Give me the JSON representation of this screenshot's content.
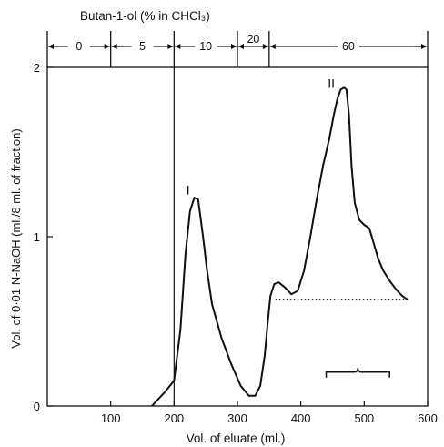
{
  "chart_data": {
    "type": "line",
    "title": "Butan-1-ol (% in CHCl₃)",
    "xlabel": "Vol. of eluate (ml.)",
    "ylabel": "Vol. of 0·01 N-NaOH (ml./8 ml. of fraction)",
    "xlim": [
      0,
      600
    ],
    "ylim": [
      0,
      2
    ],
    "x_ticks": [
      100,
      200,
      300,
      400,
      500,
      600
    ],
    "x_tick_labels": [
      "100",
      "200",
      "300",
      "400",
      "500",
      "600"
    ],
    "y_ticks": [
      0,
      1,
      2
    ],
    "y_tick_labels": [
      "0",
      "1",
      "2"
    ],
    "grid": false,
    "solvent_bands": [
      {
        "label": "0",
        "from": 0,
        "to": 100
      },
      {
        "label": "5",
        "from": 100,
        "to": 200
      },
      {
        "label": "10",
        "from": 200,
        "to": 300
      },
      {
        "label": "20",
        "from": 300,
        "to": 350
      },
      {
        "label": "60",
        "from": 350,
        "to": 600
      }
    ],
    "vertical_line_x": 200,
    "series": [
      {
        "x": [
          165,
          185,
          200,
          210,
          218,
          225,
          232,
          238,
          245,
          252,
          260,
          275,
          290,
          305,
          318,
          328,
          336,
          343,
          348,
          352,
          358,
          365,
          375,
          385,
          395,
          405,
          415,
          425,
          435,
          445,
          452,
          458,
          463,
          468,
          472,
          476,
          480,
          485,
          492,
          500,
          508,
          515,
          522,
          530,
          540,
          550,
          560,
          568
        ],
        "y": [
          0.0,
          0.08,
          0.15,
          0.45,
          0.9,
          1.15,
          1.23,
          1.22,
          1.02,
          0.8,
          0.6,
          0.4,
          0.25,
          0.12,
          0.06,
          0.06,
          0.12,
          0.3,
          0.5,
          0.65,
          0.72,
          0.73,
          0.7,
          0.66,
          0.68,
          0.8,
          1.0,
          1.22,
          1.42,
          1.58,
          1.72,
          1.82,
          1.87,
          1.88,
          1.87,
          1.72,
          1.42,
          1.2,
          1.1,
          1.07,
          1.05,
          0.96,
          0.87,
          0.8,
          0.74,
          0.69,
          0.65,
          0.63
        ]
      }
    ],
    "baseline": {
      "x_from": 360,
      "x_to": 570,
      "y": 0.63,
      "style": "dotted"
    },
    "peak_labels": [
      {
        "text": "I",
        "x": 222,
        "y": 1.25
      },
      {
        "text": "II",
        "x": 448,
        "y": 1.88
      }
    ],
    "bracket": {
      "x_from": 440,
      "x_to": 540,
      "y": 0.2
    }
  }
}
